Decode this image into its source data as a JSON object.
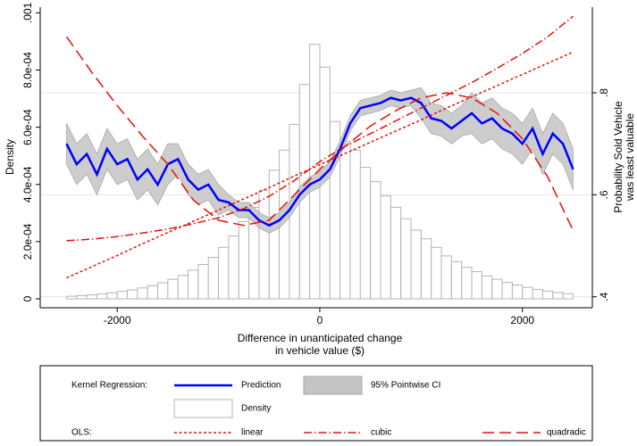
{
  "chart_data": {
    "type": "combo",
    "xlabel": [
      "Difference in unanticipated change",
      "in vehicle value ($)"
    ],
    "ylabel": "Density",
    "y2label": [
      "Probability Sold Vehicle",
      "was least valuable"
    ],
    "xlim": [
      -2760,
      2690
    ],
    "xticks": [
      -2000,
      0,
      2000
    ],
    "ylim": [
      0,
      0.00102
    ],
    "yticks": [
      0,
      {
        "value": 0.0002,
        "label": "2.0e-04"
      },
      {
        "value": 0.0004,
        "label": "4.0e-04"
      },
      {
        "value": 0.0006,
        "label": "6.0e-04"
      },
      {
        "value": 0.0008,
        "label": "8.0e-04"
      },
      {
        "value": 0.001,
        "label": ".001"
      }
    ],
    "y2lim": [
      0.396,
      0.968
    ],
    "y2ticks": [
      {
        "value": 0.4,
        "label": ".4"
      },
      {
        "value": 0.6,
        "label": ".6"
      },
      {
        "value": 0.8,
        "label": ".8"
      }
    ],
    "grid": true,
    "legend_groups": [
      "Kernel Regression:",
      "OLS:"
    ],
    "series": [
      {
        "name": "Prediction",
        "type": "line",
        "axis": "y2",
        "color": "#0000ff",
        "style": "solid",
        "x": [
          -2500,
          -2400,
          -2300,
          -2200,
          -2100,
          -2000,
          -1900,
          -1800,
          -1700,
          -1600,
          -1500,
          -1400,
          -1300,
          -1200,
          -1100,
          -1000,
          -900,
          -800,
          -700,
          -600,
          -500,
          -400,
          -300,
          -200,
          -100,
          0,
          100,
          200,
          300,
          400,
          500,
          600,
          700,
          800,
          900,
          1000,
          1100,
          1200,
          1300,
          1400,
          1500,
          1600,
          1700,
          1800,
          1900,
          2000,
          2100,
          2200,
          2300,
          2400,
          2500
        ],
        "values": [
          0.7,
          0.66,
          0.68,
          0.64,
          0.69,
          0.66,
          0.67,
          0.63,
          0.65,
          0.62,
          0.66,
          0.67,
          0.63,
          0.61,
          0.62,
          0.59,
          0.585,
          0.57,
          0.57,
          0.55,
          0.54,
          0.55,
          0.57,
          0.6,
          0.62,
          0.63,
          0.65,
          0.69,
          0.74,
          0.77,
          0.775,
          0.78,
          0.79,
          0.785,
          0.79,
          0.78,
          0.75,
          0.745,
          0.73,
          0.745,
          0.76,
          0.74,
          0.75,
          0.73,
          0.72,
          0.7,
          0.73,
          0.68,
          0.72,
          0.7,
          0.65
        ]
      },
      {
        "name": "95% Pointwise CI",
        "type": "band",
        "axis": "y2",
        "color": "#c4c4c4",
        "x": [
          -2500,
          -2400,
          -2300,
          -2200,
          -2100,
          -2000,
          -1900,
          -1800,
          -1700,
          -1600,
          -1500,
          -1400,
          -1300,
          -1200,
          -1100,
          -1000,
          -900,
          -800,
          -700,
          -600,
          -500,
          -400,
          -300,
          -200,
          -100,
          0,
          100,
          200,
          300,
          400,
          500,
          600,
          700,
          800,
          900,
          1000,
          1100,
          1200,
          1300,
          1400,
          1500,
          1600,
          1700,
          1800,
          1900,
          2000,
          2100,
          2200,
          2300,
          2400,
          2500
        ],
        "lower": [
          0.66,
          0.62,
          0.64,
          0.6,
          0.65,
          0.62,
          0.63,
          0.59,
          0.61,
          0.58,
          0.62,
          0.64,
          0.6,
          0.58,
          0.59,
          0.56,
          0.57,
          0.555,
          0.555,
          0.535,
          0.525,
          0.535,
          0.555,
          0.585,
          0.605,
          0.615,
          0.635,
          0.675,
          0.725,
          0.755,
          0.76,
          0.765,
          0.775,
          0.77,
          0.775,
          0.75,
          0.72,
          0.715,
          0.7,
          0.715,
          0.72,
          0.7,
          0.71,
          0.69,
          0.68,
          0.66,
          0.69,
          0.64,
          0.68,
          0.66,
          0.61
        ],
        "upper": [
          0.74,
          0.7,
          0.72,
          0.68,
          0.73,
          0.7,
          0.71,
          0.67,
          0.69,
          0.66,
          0.7,
          0.7,
          0.66,
          0.64,
          0.65,
          0.62,
          0.6,
          0.585,
          0.585,
          0.565,
          0.555,
          0.565,
          0.585,
          0.615,
          0.635,
          0.645,
          0.665,
          0.705,
          0.755,
          0.785,
          0.79,
          0.795,
          0.805,
          0.8,
          0.805,
          0.81,
          0.78,
          0.775,
          0.76,
          0.775,
          0.8,
          0.78,
          0.79,
          0.77,
          0.76,
          0.74,
          0.77,
          0.72,
          0.76,
          0.74,
          0.69
        ]
      },
      {
        "name": "Density",
        "type": "histogram",
        "axis": "y",
        "color": "#ffffff",
        "bins": [
          -2500,
          -2400,
          -2300,
          -2200,
          -2100,
          -2000,
          -1900,
          -1800,
          -1700,
          -1600,
          -1500,
          -1400,
          -1300,
          -1200,
          -1100,
          -1000,
          -900,
          -800,
          -700,
          -600,
          -500,
          -400,
          -300,
          -200,
          -100,
          0,
          100,
          200,
          300,
          400,
          500,
          600,
          700,
          800,
          900,
          1000,
          1100,
          1200,
          1300,
          1400,
          1500,
          1600,
          1700,
          1800,
          1900,
          2000,
          2100,
          2200,
          2300,
          2400,
          2500
        ],
        "values": [
          9e-06,
          1.1e-05,
          1.4e-05,
          1.7e-05,
          2.1e-05,
          2.6e-05,
          3.1e-05,
          3.8e-05,
          4.6e-05,
          5.6e-05,
          6.8e-05,
          8.2e-05,
          0.0001,
          0.00012,
          0.000145,
          0.00018,
          0.00022,
          0.00027,
          0.00032,
          0.00038,
          0.00045,
          0.00052,
          0.00061,
          0.00075,
          0.00089,
          0.00081,
          0.00062,
          0.00055,
          0.00052,
          0.00046,
          0.00041,
          0.00036,
          0.00032,
          0.00028,
          0.00024,
          0.00021,
          0.00018,
          0.00015,
          0.00013,
          0.00011,
          9.5e-05,
          8e-05,
          6.8e-05,
          5.7e-05,
          4.8e-05,
          4e-05,
          3.3e-05,
          2.7e-05,
          2.2e-05,
          1.8e-05
        ]
      },
      {
        "name": "linear",
        "type": "line",
        "axis": "y2",
        "color": "#e3120b",
        "style": "dotted",
        "x": [
          -2500,
          -2250,
          -2000,
          -1750,
          -1500,
          -1250,
          -1000,
          -750,
          -500,
          -250,
          0,
          250,
          500,
          750,
          1000,
          1250,
          1500,
          1750,
          2000,
          2250,
          2500
        ],
        "values": [
          0.437,
          0.459,
          0.481,
          0.504,
          0.526,
          0.548,
          0.57,
          0.592,
          0.614,
          0.637,
          0.659,
          0.681,
          0.703,
          0.725,
          0.747,
          0.77,
          0.792,
          0.814,
          0.836,
          0.858,
          0.88
        ]
      },
      {
        "name": "cubic",
        "type": "line",
        "axis": "y2",
        "color": "#e3120b",
        "style": "dash-dot",
        "x": [
          -2500,
          -2250,
          -2000,
          -1750,
          -1500,
          -1250,
          -1000,
          -750,
          -500,
          -250,
          0,
          250,
          500,
          750,
          1000,
          1250,
          1500,
          1750,
          2000,
          2250,
          2500
        ],
        "values": [
          0.51,
          0.513,
          0.518,
          0.525,
          0.533,
          0.543,
          0.555,
          0.573,
          0.597,
          0.628,
          0.665,
          0.695,
          0.72,
          0.745,
          0.77,
          0.795,
          0.82,
          0.848,
          0.877,
          0.91,
          0.95
        ]
      },
      {
        "name": "quadradic",
        "type": "line",
        "axis": "y2",
        "color": "#e3120b",
        "style": "dashed",
        "x": [
          -2500,
          -2250,
          -2000,
          -1750,
          -1500,
          -1250,
          -1000,
          -750,
          -500,
          -250,
          0,
          250,
          500,
          750,
          1000,
          1250,
          1500,
          1750,
          2000,
          2250,
          2500
        ],
        "values": [
          0.91,
          0.84,
          0.775,
          0.715,
          0.66,
          0.59,
          0.55,
          0.54,
          0.55,
          0.6,
          0.65,
          0.695,
          0.735,
          0.765,
          0.79,
          0.8,
          0.79,
          0.76,
          0.71,
          0.635,
          0.53
        ]
      }
    ]
  }
}
